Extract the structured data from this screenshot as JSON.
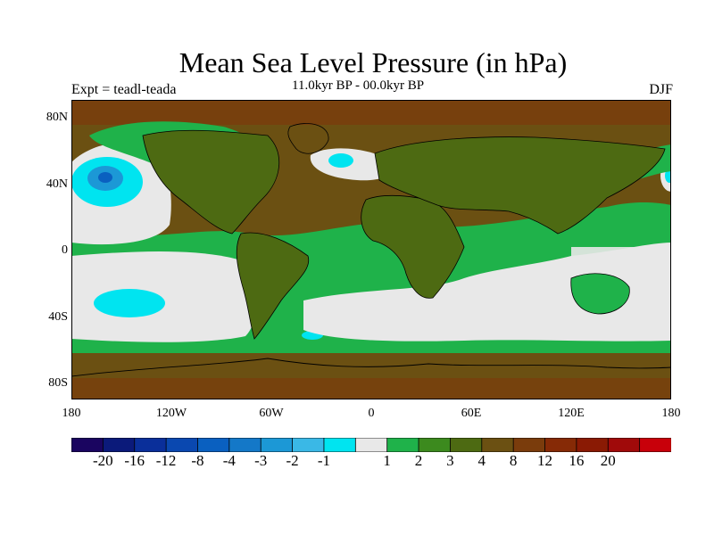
{
  "title": "Mean Sea Level Pressure (in hPa)",
  "subtitle": "11.0kyr BP - 00.0kyr BP",
  "left_label": "Expt = teadl-teada",
  "right_label": "DJF",
  "lat_ticks": [
    "80N",
    "40N",
    "0",
    "40S",
    "80S"
  ],
  "lon_ticks": [
    "180",
    "120W",
    "60W",
    "0",
    "60E",
    "120E",
    "180"
  ],
  "colorbar": {
    "colors": [
      "#1a0560",
      "#0b1a7a",
      "#0a2f9a",
      "#0a48b0",
      "#0a60c0",
      "#1478c8",
      "#1c98d6",
      "#3ab8e6",
      "#00e4f0",
      "#e8e8e8",
      "#1fb24a",
      "#3c8a1e",
      "#4d6a12",
      "#6b5012",
      "#7a3c0c",
      "#862a06",
      "#8a1a04",
      "#a00a0a",
      "#c8000a"
    ],
    "labels": [
      "-20",
      "-16",
      "-12",
      "-8",
      "-4",
      "-3",
      "-2",
      "-1",
      "1",
      "2",
      "3",
      "4",
      "8",
      "12",
      "16",
      "20"
    ]
  }
}
